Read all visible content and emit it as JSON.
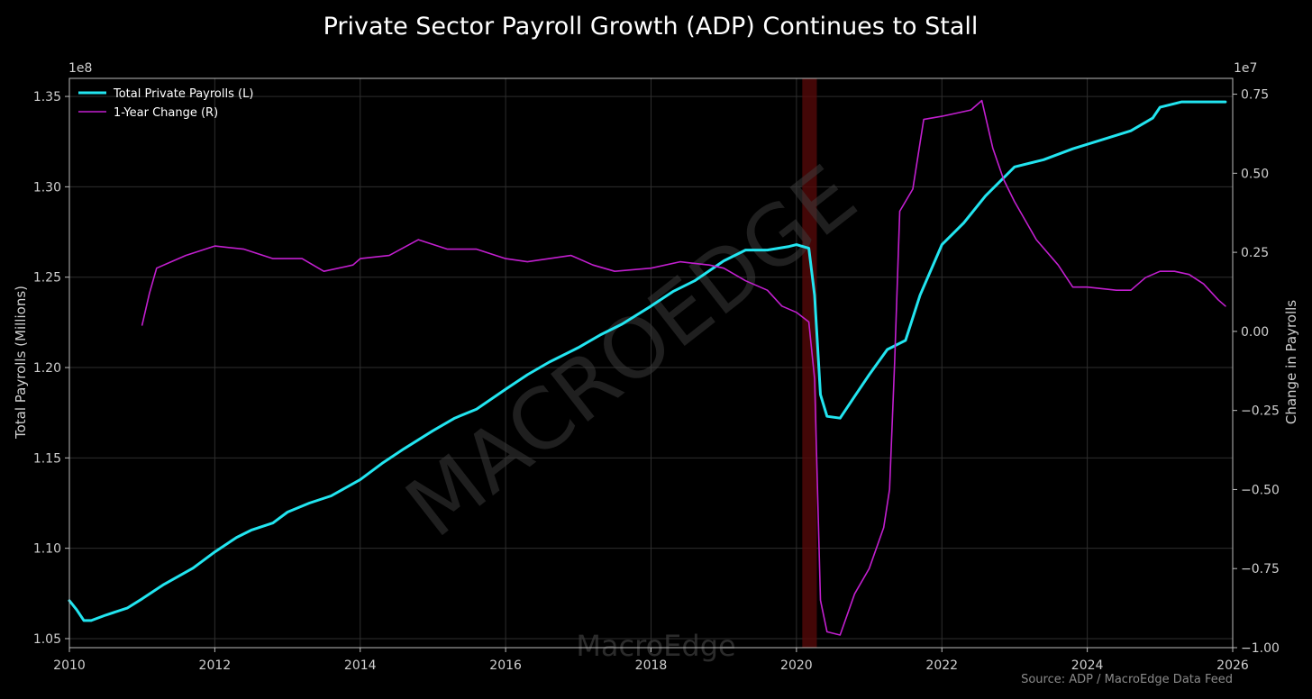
{
  "chart_data": {
    "type": "line",
    "title": "Private Sector Payroll Growth (ADP) Continues to Stall",
    "ylabel_left": "Total Payrolls (Millions)",
    "ylabel_right": "Change in Payrolls",
    "left_offset_text": "1e8",
    "right_offset_text": "1e7",
    "xlim": [
      2010.0,
      2026.0
    ],
    "ylim_left": [
      1.045,
      1.36
    ],
    "ylim_right": [
      -1.0,
      0.8
    ],
    "x_ticks": [
      "2010",
      "2012",
      "2014",
      "2016",
      "2018",
      "2020",
      "2022",
      "2024",
      "2026"
    ],
    "y_ticks_left": [
      "1.05",
      "1.10",
      "1.15",
      "1.20",
      "1.25",
      "1.30",
      "1.35"
    ],
    "y_ticks_right": [
      "−1.00",
      "−0.75",
      "−0.50",
      "−0.25",
      "0.00",
      "0.25",
      "0.50",
      "0.75"
    ],
    "grid": true,
    "legend_position": "top-left",
    "recession_shading": [
      2020.08,
      2020.28
    ],
    "series": [
      {
        "name": "Total Private Payrolls (L)",
        "axis": "left",
        "color": "#22e5f0",
        "points": [
          [
            2010.0,
            1.071
          ],
          [
            2010.1,
            1.066
          ],
          [
            2010.2,
            1.06
          ],
          [
            2010.3,
            1.06
          ],
          [
            2010.5,
            1.063
          ],
          [
            2010.8,
            1.067
          ],
          [
            2011.0,
            1.072
          ],
          [
            2011.3,
            1.08
          ],
          [
            2011.7,
            1.089
          ],
          [
            2012.0,
            1.098
          ],
          [
            2012.3,
            1.106
          ],
          [
            2012.5,
            1.11
          ],
          [
            2012.8,
            1.114
          ],
          [
            2013.0,
            1.12
          ],
          [
            2013.3,
            1.125
          ],
          [
            2013.6,
            1.129
          ],
          [
            2014.0,
            1.138
          ],
          [
            2014.3,
            1.147
          ],
          [
            2014.6,
            1.155
          ],
          [
            2015.0,
            1.165
          ],
          [
            2015.3,
            1.172
          ],
          [
            2015.6,
            1.177
          ],
          [
            2016.0,
            1.188
          ],
          [
            2016.3,
            1.196
          ],
          [
            2016.6,
            1.203
          ],
          [
            2017.0,
            1.211
          ],
          [
            2017.3,
            1.218
          ],
          [
            2017.6,
            1.224
          ],
          [
            2018.0,
            1.234
          ],
          [
            2018.3,
            1.242
          ],
          [
            2018.6,
            1.248
          ],
          [
            2019.0,
            1.259
          ],
          [
            2019.3,
            1.265
          ],
          [
            2019.6,
            1.265
          ],
          [
            2019.9,
            1.267
          ],
          [
            2020.0,
            1.268
          ],
          [
            2020.17,
            1.266
          ],
          [
            2020.25,
            1.24
          ],
          [
            2020.33,
            1.185
          ],
          [
            2020.42,
            1.173
          ],
          [
            2020.6,
            1.172
          ],
          [
            2020.8,
            1.184
          ],
          [
            2021.0,
            1.196
          ],
          [
            2021.25,
            1.21
          ],
          [
            2021.5,
            1.215
          ],
          [
            2021.7,
            1.24
          ],
          [
            2022.0,
            1.268
          ],
          [
            2022.3,
            1.28
          ],
          [
            2022.6,
            1.295
          ],
          [
            2023.0,
            1.311
          ],
          [
            2023.4,
            1.315
          ],
          [
            2023.8,
            1.321
          ],
          [
            2024.2,
            1.326
          ],
          [
            2024.6,
            1.331
          ],
          [
            2024.9,
            1.338
          ],
          [
            2025.0,
            1.344
          ],
          [
            2025.3,
            1.347
          ],
          [
            2025.6,
            1.347
          ],
          [
            2025.9,
            1.347
          ]
        ]
      },
      {
        "name": "1-Year Change (R)",
        "axis": "right",
        "color": "#c21fcf",
        "points": [
          [
            2011.0,
            0.02
          ],
          [
            2011.1,
            0.12
          ],
          [
            2011.2,
            0.2
          ],
          [
            2011.4,
            0.22
          ],
          [
            2011.6,
            0.24
          ],
          [
            2012.0,
            0.27
          ],
          [
            2012.4,
            0.26
          ],
          [
            2012.8,
            0.23
          ],
          [
            2013.2,
            0.23
          ],
          [
            2013.5,
            0.19
          ],
          [
            2013.9,
            0.21
          ],
          [
            2014.0,
            0.23
          ],
          [
            2014.4,
            0.24
          ],
          [
            2014.8,
            0.29
          ],
          [
            2015.2,
            0.26
          ],
          [
            2015.6,
            0.26
          ],
          [
            2016.0,
            0.23
          ],
          [
            2016.3,
            0.22
          ],
          [
            2016.6,
            0.23
          ],
          [
            2016.9,
            0.24
          ],
          [
            2017.2,
            0.21
          ],
          [
            2017.5,
            0.19
          ],
          [
            2018.0,
            0.2
          ],
          [
            2018.4,
            0.22
          ],
          [
            2018.8,
            0.21
          ],
          [
            2019.0,
            0.2
          ],
          [
            2019.3,
            0.16
          ],
          [
            2019.6,
            0.13
          ],
          [
            2019.8,
            0.08
          ],
          [
            2020.0,
            0.06
          ],
          [
            2020.17,
            0.03
          ],
          [
            2020.25,
            -0.15
          ],
          [
            2020.33,
            -0.85
          ],
          [
            2020.42,
            -0.95
          ],
          [
            2020.6,
            -0.96
          ],
          [
            2020.8,
            -0.83
          ],
          [
            2021.0,
            -0.75
          ],
          [
            2021.2,
            -0.62
          ],
          [
            2021.28,
            -0.5
          ],
          [
            2021.35,
            -0.1
          ],
          [
            2021.42,
            0.38
          ],
          [
            2021.6,
            0.45
          ],
          [
            2021.75,
            0.67
          ],
          [
            2022.0,
            0.68
          ],
          [
            2022.2,
            0.69
          ],
          [
            2022.4,
            0.7
          ],
          [
            2022.55,
            0.73
          ],
          [
            2022.7,
            0.58
          ],
          [
            2022.85,
            0.48
          ],
          [
            2023.0,
            0.41
          ],
          [
            2023.1,
            0.37
          ],
          [
            2023.3,
            0.29
          ],
          [
            2023.6,
            0.21
          ],
          [
            2023.8,
            0.14
          ],
          [
            2024.0,
            0.14
          ],
          [
            2024.4,
            0.13
          ],
          [
            2024.6,
            0.13
          ],
          [
            2024.8,
            0.17
          ],
          [
            2025.0,
            0.19
          ],
          [
            2025.2,
            0.19
          ],
          [
            2025.4,
            0.18
          ],
          [
            2025.6,
            0.15
          ],
          [
            2025.8,
            0.1
          ],
          [
            2025.9,
            0.08
          ]
        ]
      }
    ]
  },
  "watermark": {
    "diagonal": "MACROEDGE",
    "bottom": "MacroEdge"
  },
  "source_note": "Source: ADP / MacroEdge Data Feed"
}
